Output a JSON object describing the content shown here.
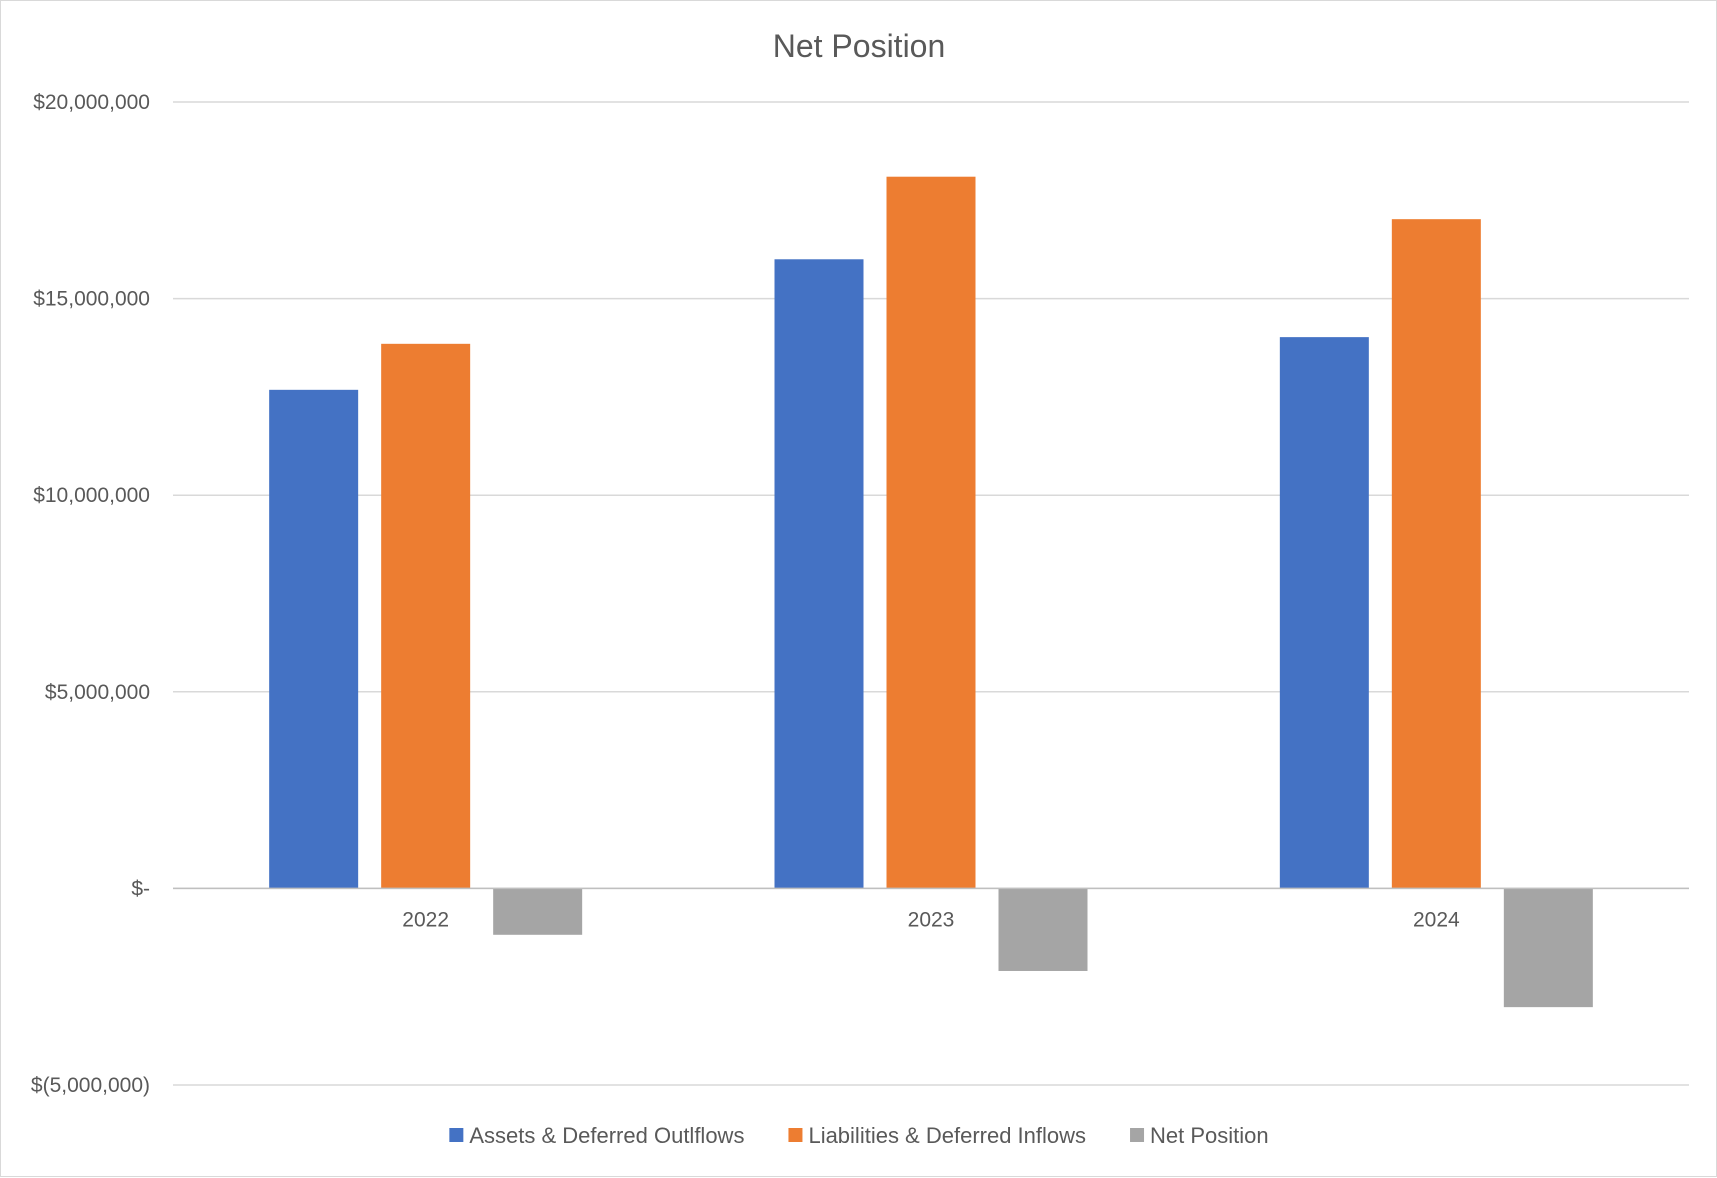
{
  "chart_data": {
    "type": "bar",
    "title": "Net Position",
    "xlabel": "",
    "ylabel": "",
    "categories": [
      "2022",
      "2023",
      "2024"
    ],
    "series": [
      {
        "name": "Assets & Deferred Outlflows",
        "values": [
          12680000,
          16000000,
          14020000
        ],
        "color": "#4472c4"
      },
      {
        "name": "Liabilities & Deferred Inflows",
        "values": [
          13850000,
          18100000,
          17020000
        ],
        "color": "#ed7d31"
      },
      {
        "name": "Net Position",
        "values": [
          -1180000,
          -2100000,
          -3020000
        ],
        "color": "#a5a5a5"
      }
    ],
    "ylim": [
      -5000000,
      20000000
    ],
    "yticks": [
      20000000,
      15000000,
      10000000,
      5000000,
      0,
      -5000000
    ],
    "ytick_labels": [
      "$20,000,000",
      "$15,000,000",
      "$10,000,000",
      "$5,000,000",
      "$-",
      "$(5,000,000)"
    ],
    "grid": true,
    "legend_position": "bottom"
  }
}
